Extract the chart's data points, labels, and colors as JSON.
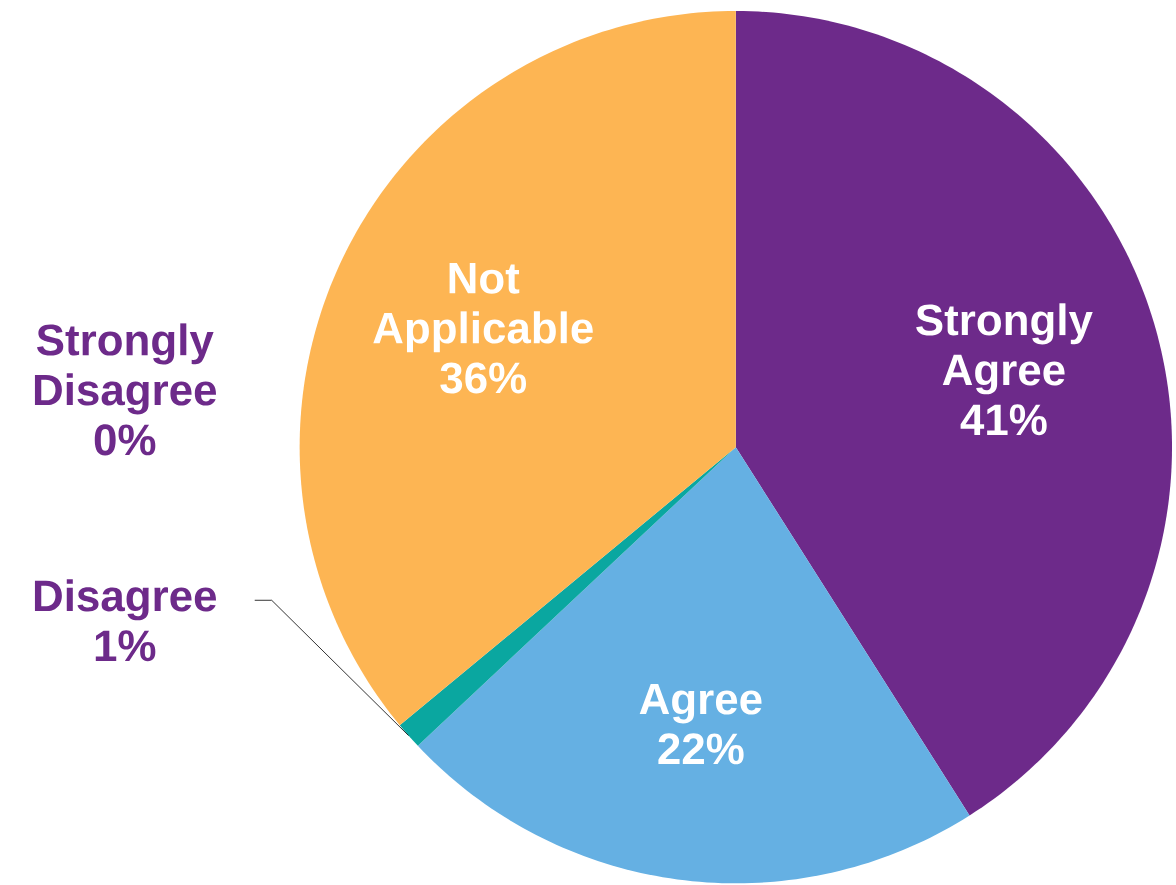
{
  "chart_data": {
    "type": "pie",
    "categories": [
      "Strongly Agree",
      "Agree",
      "Disagree",
      "Strongly Disagree",
      "Not Applicable"
    ],
    "values": [
      41,
      22,
      1,
      0,
      36
    ],
    "colors": [
      "#6d2a8a",
      "#65b0e3",
      "#0aa7a0",
      "#7a3e9d",
      "#fdb553"
    ],
    "value_labels": [
      "41%",
      "22%",
      "1%",
      "0%",
      "36%"
    ]
  }
}
